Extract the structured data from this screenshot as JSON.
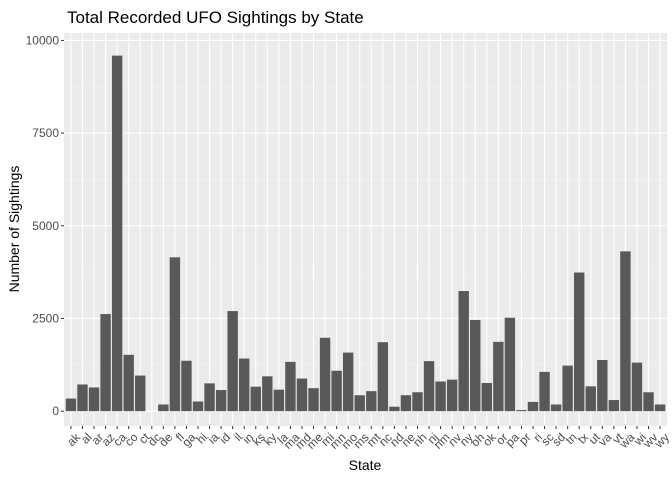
{
  "chart_data": {
    "type": "bar",
    "title": "Total Recorded UFO Sightings by State",
    "xlabel": "State",
    "ylabel": "Number of Sightings",
    "ylim": [
      -400,
      10200
    ],
    "yticks": [
      0,
      2500,
      5000,
      7500,
      10000
    ],
    "ytick_labels": [
      "0",
      "2500",
      "5000",
      "7500",
      "10000"
    ],
    "grid": true,
    "categories": [
      "ak",
      "al",
      "ar",
      "az",
      "ca",
      "co",
      "ct",
      "dc",
      "de",
      "fl",
      "ga",
      "hi",
      "ia",
      "id",
      "il",
      "in",
      "ks",
      "ky",
      "la",
      "ma",
      "md",
      "me",
      "mi",
      "mn",
      "mo",
      "ms",
      "mt",
      "nc",
      "nd",
      "ne",
      "nh",
      "nj",
      "nm",
      "nv",
      "ny",
      "oh",
      "ok",
      "or",
      "pa",
      "pr",
      "ri",
      "sc",
      "sd",
      "tn",
      "tx",
      "ut",
      "va",
      "vt",
      "wa",
      "wi",
      "wv",
      "wy"
    ],
    "values": [
      340,
      720,
      640,
      2620,
      9590,
      1520,
      960,
      0,
      180,
      4150,
      1360,
      260,
      750,
      570,
      2700,
      1420,
      660,
      940,
      580,
      1330,
      880,
      620,
      1980,
      1090,
      1580,
      430,
      540,
      1860,
      120,
      430,
      510,
      1350,
      800,
      850,
      3240,
      2460,
      760,
      1870,
      2520,
      30,
      250,
      1060,
      180,
      1230,
      3740,
      670,
      1380,
      300,
      4310,
      1310,
      510,
      180
    ],
    "colors": {
      "bar": "#595959",
      "panel_background": "#ebebeb",
      "grid_major": "#ffffff",
      "grid_minor": "#f5f5f5",
      "tick_mark": "#333333"
    }
  }
}
